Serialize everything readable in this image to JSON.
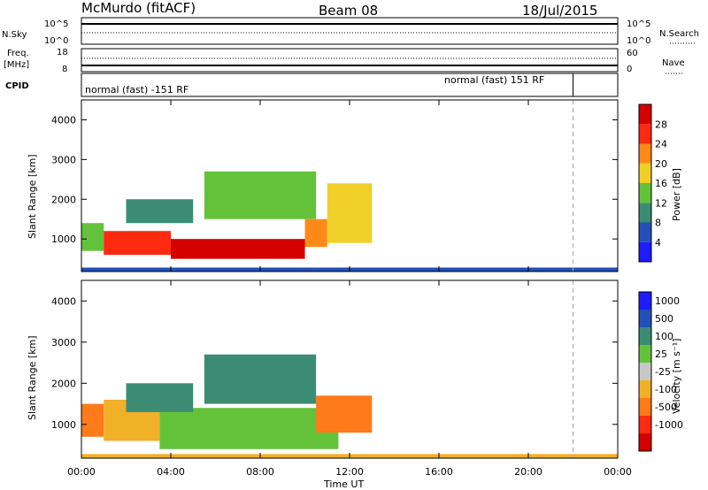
{
  "header": {
    "station": "McMurdo (fitACF)",
    "beam": "Beam 08",
    "date": "18/Jul/2015"
  },
  "noise_panel": {
    "left_label": "N.Sky",
    "right_label": "N.Search",
    "left_ticks": [
      "10^5",
      "10^0"
    ],
    "right_ticks": [
      "10^5",
      "10^0"
    ]
  },
  "freq_panel": {
    "left_label_1": "Freq.",
    "left_label_2": "[MHz]",
    "left_ticks": [
      "18",
      "8"
    ],
    "right_label": "Nave",
    "right_ticks": [
      "60",
      "0"
    ]
  },
  "cpid_panel": {
    "label": "CPID",
    "segments": [
      {
        "text": "normal (fast) -151 RF",
        "start_hour": 0,
        "end_hour": 22
      },
      {
        "text": "normal (fast) 151 RF",
        "start_hour": 22,
        "end_hour": 24
      }
    ]
  },
  "x_axis": {
    "label": "Time UT",
    "ticks": [
      "00:00",
      "04:00",
      "08:00",
      "12:00",
      "16:00",
      "20:00",
      "00:00"
    ],
    "tick_hours": [
      0,
      4,
      8,
      12,
      16,
      20,
      24
    ]
  },
  "chart_data": [
    {
      "type": "heatmap",
      "name": "power",
      "ylabel": "Slant Range [km]",
      "y_ticks": [
        1000,
        2000,
        3000,
        4000
      ],
      "ylim": [
        180,
        4500
      ],
      "xlim_hours": [
        0,
        24
      ],
      "colorbar_label": "Power [dB]",
      "colorbar_ticks": [
        "4",
        "8",
        "12",
        "16",
        "20",
        "24",
        "28"
      ],
      "colorbar_colors": [
        "#1c1cff",
        "#2350b8",
        "#3b8c73",
        "#63c23a",
        "#f0d028",
        "#ff8a1a",
        "#ff2a0f",
        "#d40000"
      ],
      "cells": [
        {
          "hour_start": 0.0,
          "hour_end": 1.0,
          "range_start": 700,
          "range_end": 1400,
          "value": 14
        },
        {
          "hour_start": 1.0,
          "hour_end": 4.0,
          "range_start": 600,
          "range_end": 1200,
          "value": 26
        },
        {
          "hour_start": 4.0,
          "hour_end": 10.0,
          "range_start": 500,
          "range_end": 1000,
          "value": 29
        },
        {
          "hour_start": 10.0,
          "hour_end": 11.0,
          "range_start": 800,
          "range_end": 1500,
          "value": 22
        },
        {
          "hour_start": 11.0,
          "hour_end": 13.0,
          "range_start": 900,
          "range_end": 2400,
          "value": 16
        },
        {
          "hour_start": 5.5,
          "hour_end": 10.5,
          "range_start": 1500,
          "range_end": 2700,
          "value": 14
        },
        {
          "hour_start": 2.0,
          "hour_end": 5.0,
          "range_start": 1400,
          "range_end": 2000,
          "value": 9
        },
        {
          "hour_start": 0.0,
          "hour_end": 24.0,
          "range_start": 180,
          "range_end": 280,
          "value": 7
        }
      ]
    },
    {
      "type": "heatmap",
      "name": "velocity",
      "ylabel": "Slant Range [km]",
      "y_ticks": [
        1000,
        2000,
        3000,
        4000
      ],
      "ylim": [
        180,
        4500
      ],
      "xlim_hours": [
        0,
        24
      ],
      "colorbar_label": "Velocity [m s⁻¹]",
      "colorbar_ticks": [
        "1000",
        "500",
        "100",
        "25",
        "-25",
        "-100",
        "-500",
        "-1000"
      ],
      "colorbar_colors": [
        "#1c1cff",
        "#2350b8",
        "#3b8c73",
        "#63c23a",
        "#c8c8c8",
        "#f0b028",
        "#ff7a1a",
        "#ff2a0f",
        "#d40000"
      ],
      "cells": [
        {
          "hour_start": 0.0,
          "hour_end": 1.0,
          "range_start": 700,
          "range_end": 1500,
          "value": -150
        },
        {
          "hour_start": 1.0,
          "hour_end": 3.5,
          "range_start": 600,
          "range_end": 1600,
          "value": -80
        },
        {
          "hour_start": 3.5,
          "hour_end": 11.5,
          "range_start": 400,
          "range_end": 1400,
          "value": 80
        },
        {
          "hour_start": 10.5,
          "hour_end": 13.0,
          "range_start": 800,
          "range_end": 1700,
          "value": -200
        },
        {
          "hour_start": 5.5,
          "hour_end": 10.5,
          "range_start": 1500,
          "range_end": 2700,
          "value": 150
        },
        {
          "hour_start": 2.0,
          "hour_end": 5.0,
          "range_start": 1300,
          "range_end": 2000,
          "value": 300
        },
        {
          "hour_start": 0.0,
          "hour_end": 24.0,
          "range_start": 180,
          "range_end": 280,
          "value": -60
        }
      ]
    }
  ]
}
